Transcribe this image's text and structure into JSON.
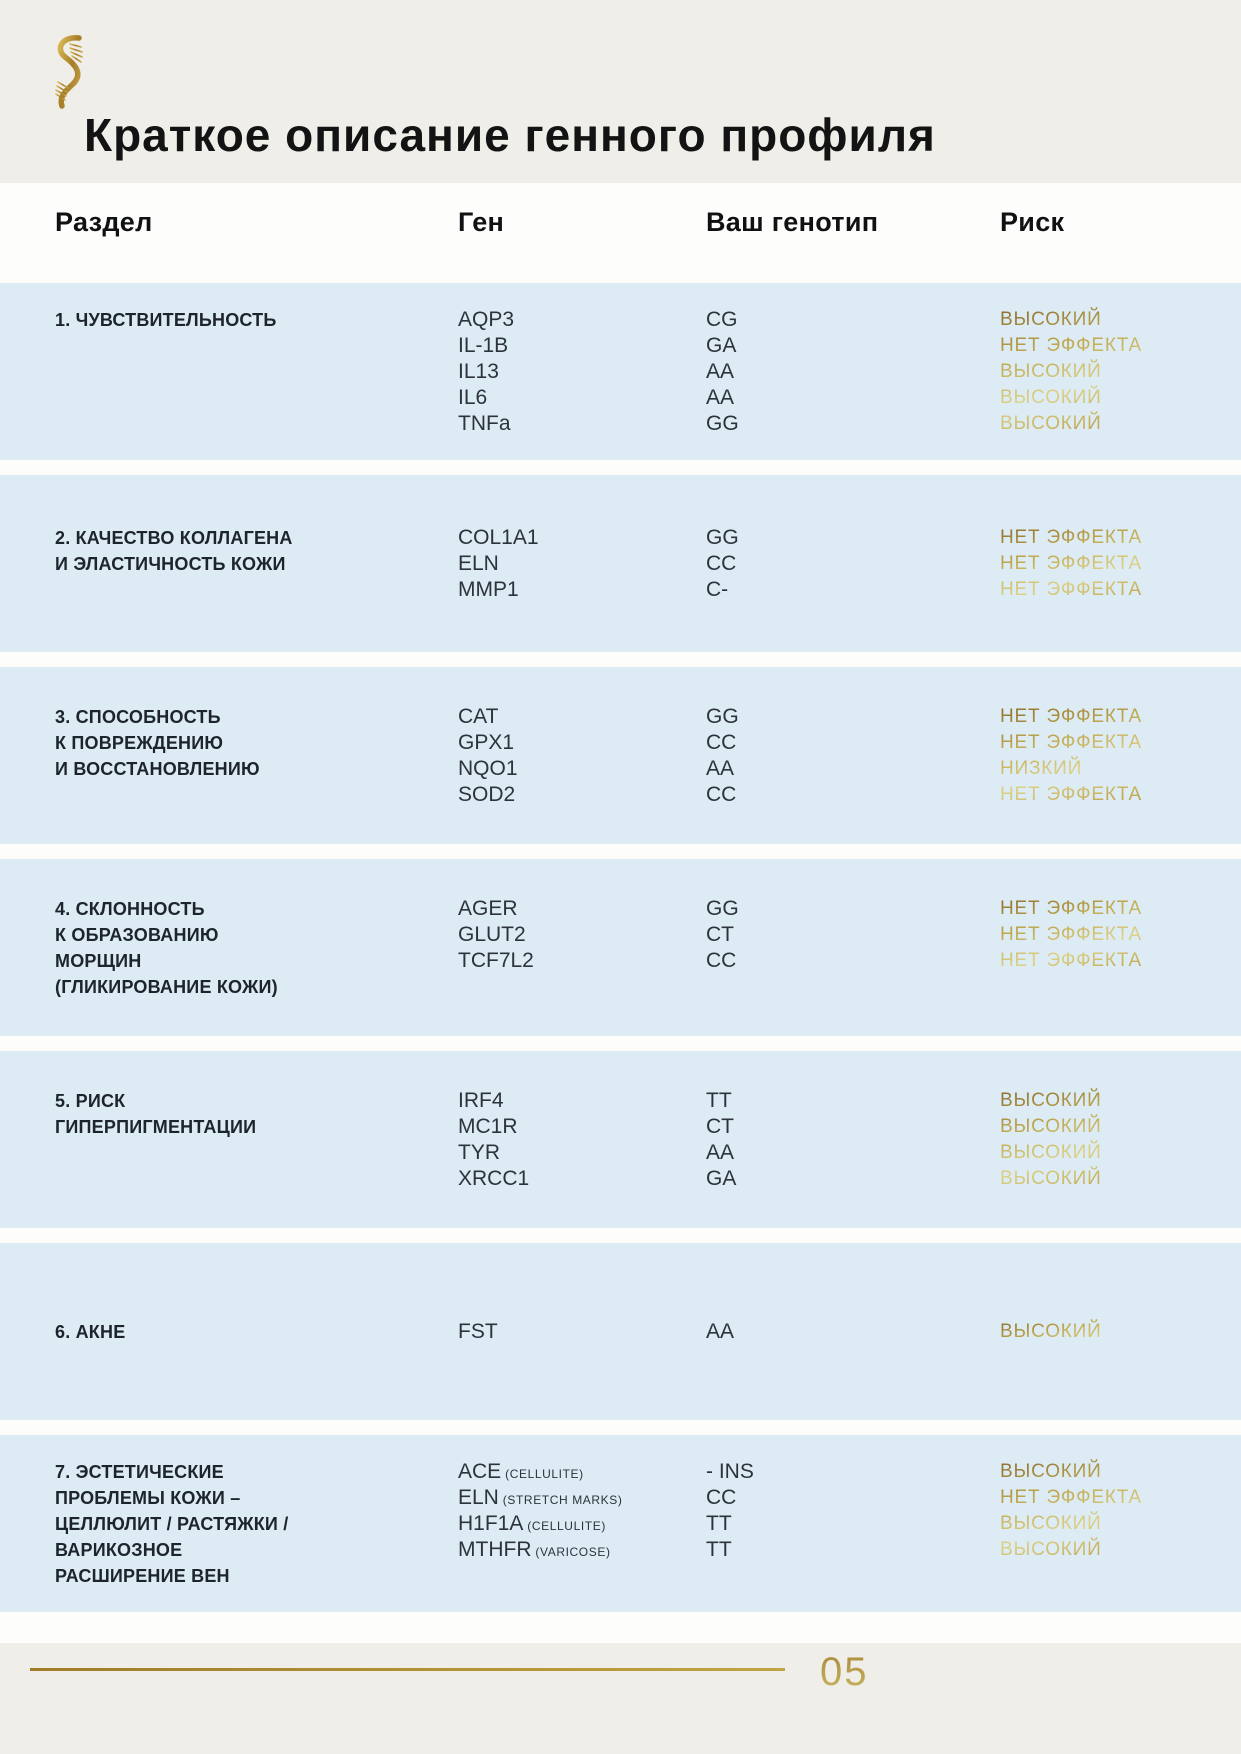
{
  "page": {
    "title": "Краткое описание генного профиля",
    "page_number": "05",
    "logo": "gold-dna-helix"
  },
  "colors": {
    "header_beige": "#efeee8",
    "band_blue": "#dcebf4",
    "accent_gold_dark": "#8a6c2c",
    "accent_gold_light": "#ddd186",
    "footer_rule_gold": "#a27c28",
    "text_dark": "#1d242c"
  },
  "table": {
    "headers": {
      "section": "Раздел",
      "gene": "Ген",
      "genotype": "Ваш генотип",
      "risk": "Риск"
    },
    "sections": [
      {
        "name_lines": [
          "1. ЧУВСТВИТЕЛЬНОСТЬ"
        ],
        "rows": [
          {
            "gene": "AQP3",
            "suffix": "",
            "genotype": "CG",
            "risk": "ВЫСОКИЙ"
          },
          {
            "gene": "IL-1B",
            "suffix": "",
            "genotype": "GA",
            "risk": "НЕТ ЭФФЕКТА"
          },
          {
            "gene": "IL13",
            "suffix": "",
            "genotype": "AA",
            "risk": "ВЫСОКИЙ"
          },
          {
            "gene": "IL6",
            "suffix": "",
            "genotype": "AA",
            "risk": "ВЫСОКИЙ"
          },
          {
            "gene": "TNFa",
            "suffix": "",
            "genotype": "GG",
            "risk": "ВЫСОКИЙ"
          }
        ]
      },
      {
        "name_lines": [
          "2. КАЧЕСТВО КОЛЛАГЕНА",
          "И ЭЛАСТИЧНОСТЬ КОЖИ"
        ],
        "rows": [
          {
            "gene": "COL1A1",
            "suffix": "",
            "genotype": "GG",
            "risk": "НЕТ ЭФФЕКТА"
          },
          {
            "gene": "ELN",
            "suffix": "",
            "genotype": "CC",
            "risk": "НЕТ ЭФФЕКТА"
          },
          {
            "gene": "MMP1",
            "suffix": "",
            "genotype": "C-",
            "risk": "НЕТ ЭФФЕКТА"
          }
        ]
      },
      {
        "name_lines": [
          "3. СПОСОБНОСТЬ",
          "К ПОВРЕЖДЕНИЮ",
          "И ВОССТАНОВЛЕНИЮ"
        ],
        "rows": [
          {
            "gene": "CAT",
            "suffix": "",
            "genotype": "GG",
            "risk": "НЕТ ЭФФЕКТА"
          },
          {
            "gene": "GPX1",
            "suffix": "",
            "genotype": "CC",
            "risk": "НЕТ ЭФФЕКТА"
          },
          {
            "gene": "NQO1",
            "suffix": "",
            "genotype": "AA",
            "risk": "НИЗКИЙ"
          },
          {
            "gene": "SOD2",
            "suffix": "",
            "genotype": "CC",
            "risk": "НЕТ ЭФФЕКТА"
          }
        ]
      },
      {
        "name_lines": [
          "4. СКЛОННОСТЬ",
          "К ОБРАЗОВАНИЮ",
          "МОРЩИН",
          "(ГЛИКИРОВАНИЕ КОЖИ)"
        ],
        "rows": [
          {
            "gene": "AGER",
            "suffix": "",
            "genotype": "GG",
            "risk": "НЕТ ЭФФЕКТА"
          },
          {
            "gene": "GLUT2",
            "suffix": "",
            "genotype": "CT",
            "risk": "НЕТ ЭФФЕКТА"
          },
          {
            "gene": "TCF7L2",
            "suffix": "",
            "genotype": "CC",
            "risk": "НЕТ ЭФФЕКТА"
          }
        ]
      },
      {
        "name_lines": [
          "5. РИСК",
          "ГИПЕРПИГМЕНТАЦИИ"
        ],
        "rows": [
          {
            "gene": "IRF4",
            "suffix": "",
            "genotype": "TT",
            "risk": "ВЫСОКИЙ"
          },
          {
            "gene": "MC1R",
            "suffix": "",
            "genotype": "CT",
            "risk": "ВЫСОКИЙ"
          },
          {
            "gene": "TYR",
            "suffix": "",
            "genotype": "AA",
            "risk": "ВЫСОКИЙ"
          },
          {
            "gene": "XRCC1",
            "suffix": "",
            "genotype": "GA",
            "risk": "ВЫСОКИЙ"
          }
        ]
      },
      {
        "name_lines": [
          "6. АКНЕ"
        ],
        "rows": [
          {
            "gene": "FST",
            "suffix": "",
            "genotype": "AA",
            "risk": "ВЫСОКИЙ"
          }
        ]
      },
      {
        "name_lines": [
          "7. ЭСТЕТИЧЕСКИЕ",
          "ПРОБЛЕМЫ КОЖИ –",
          "ЦЕЛЛЮЛИТ / РАСТЯЖКИ /",
          "ВАРИКОЗНОЕ",
          "РАСШИРЕНИЕ ВЕН"
        ],
        "rows": [
          {
            "gene": "ACE",
            "suffix": "(CELLULITE)",
            "genotype": "- INS",
            "risk": "ВЫСОКИЙ"
          },
          {
            "gene": "ELN",
            "suffix": "(STRETCH MARKS)",
            "genotype": "CC",
            "risk": "НЕТ ЭФФЕКТА"
          },
          {
            "gene": "H1F1A",
            "suffix": "(CELLULITE)",
            "genotype": "TT",
            "risk": "ВЫСОКИЙ"
          },
          {
            "gene": "MTHFR",
            "suffix": "(VARICOSE)",
            "genotype": "TT",
            "risk": "ВЫСОКИЙ"
          }
        ]
      }
    ]
  }
}
